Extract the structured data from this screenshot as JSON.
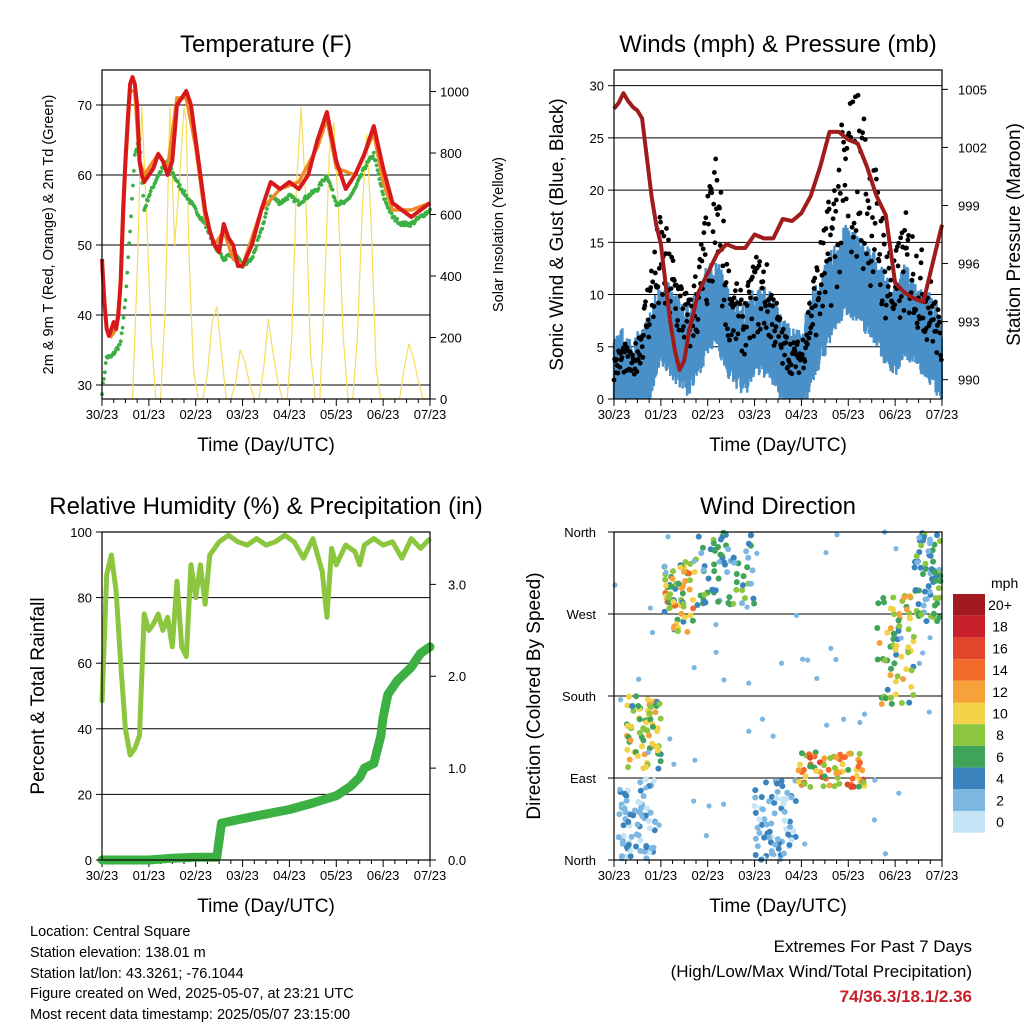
{
  "chart_data": [
    {
      "type": "line",
      "title": "Temperature (F)",
      "xlabel": "Time (Day/UTC)",
      "ylabel": "2m & 9m T (Red, Orange) & 2m Td (Green)",
      "ylabel_right": "Solar Insolation (Yellow)",
      "x_ticks": [
        "30/23",
        "01/23",
        "02/23",
        "03/23",
        "04/23",
        "05/23",
        "06/23",
        "07/23"
      ],
      "ylim": [
        28,
        75
      ],
      "yticks": [
        30,
        40,
        50,
        60,
        70
      ],
      "ylim_right": [
        0,
        1070
      ],
      "yticks_right": [
        0,
        200,
        400,
        600,
        800,
        1000
      ],
      "grid": true,
      "colors": {
        "t2m": "#d7191c",
        "t9m": "#f08a24",
        "td": "#3cb043",
        "solar": "#f6dd5a"
      },
      "series": [
        {
          "key": "t2m",
          "x": [
            0,
            0.05,
            0.1,
            0.15,
            0.2,
            0.25,
            0.3,
            0.35,
            0.4,
            0.45,
            0.5,
            0.55,
            0.6,
            0.65,
            0.7,
            0.75,
            0.8,
            0.85,
            0.9,
            1,
            1.1,
            1.2,
            1.3,
            1.4,
            1.5,
            1.6,
            1.7,
            1.8,
            1.9,
            2,
            2.1,
            2.2,
            2.3,
            2.4,
            2.5,
            2.6,
            2.7,
            2.8,
            2.9,
            3,
            3.2,
            3.4,
            3.6,
            3.8,
            4,
            4.2,
            4.4,
            4.6,
            4.8,
            5,
            5.2,
            5.4,
            5.6,
            5.8,
            6,
            6.2,
            6.4,
            6.6,
            6.8,
            7
          ],
          "y": [
            48,
            42,
            38,
            37,
            38,
            39,
            38,
            40,
            45,
            55,
            62,
            68,
            73,
            74,
            73,
            70,
            62,
            60,
            59,
            60,
            61,
            63,
            62,
            60,
            62,
            70,
            71,
            72,
            70,
            65,
            60,
            55,
            52,
            50,
            49,
            53,
            51,
            50,
            47,
            47,
            50,
            55,
            59,
            58,
            59,
            58,
            60,
            65,
            69,
            62,
            58,
            60,
            63,
            67,
            61,
            56,
            55,
            54,
            55,
            56
          ]
        },
        {
          "key": "t9m",
          "x": [
            0,
            0.1,
            0.2,
            0.3,
            0.4,
            0.5,
            0.6,
            0.7,
            0.8,
            0.9,
            1,
            1.2,
            1.4,
            1.6,
            1.8,
            2,
            2.2,
            2.4,
            2.6,
            2.8,
            3,
            3.4,
            3.8,
            4.2,
            4.6,
            4.8,
            5,
            5.4,
            5.8,
            6,
            6.2,
            6.6,
            7
          ],
          "y": [
            47,
            38,
            37,
            38,
            44,
            61,
            72,
            72,
            62,
            60,
            61,
            63,
            61,
            71,
            71,
            64,
            54,
            50,
            52,
            48,
            47,
            55,
            58,
            59,
            64,
            68,
            61,
            60,
            66,
            59,
            55,
            55,
            56
          ]
        },
        {
          "key": "td",
          "x": [
            0,
            0.1,
            0.2,
            0.3,
            0.4,
            0.5,
            0.6,
            0.7,
            0.8,
            0.9,
            1,
            1.2,
            1.4,
            1.6,
            1.8,
            2,
            2.2,
            2.4,
            2.6,
            2.8,
            3,
            3.2,
            3.4,
            3.6,
            3.8,
            4,
            4.2,
            4.4,
            4.6,
            4.8,
            5,
            5.2,
            5.4,
            5.6,
            5.8,
            6,
            6.2,
            6.4,
            6.6,
            6.8,
            7
          ],
          "y": [
            29,
            34,
            34,
            35,
            36,
            42,
            52,
            63,
            65,
            55,
            57,
            60,
            62,
            59,
            57,
            55,
            53,
            50,
            48,
            49,
            47,
            48,
            52,
            57,
            56,
            57,
            56,
            57,
            58,
            60,
            56,
            56,
            58,
            61,
            63,
            57,
            54,
            53,
            53,
            54,
            55
          ]
        },
        {
          "key": "solar",
          "x": [
            0.65,
            0.75,
            0.85,
            0.95,
            1.05,
            1.15,
            1.25,
            1.35,
            1.45,
            1.55,
            1.65,
            1.75,
            1.8,
            1.85,
            1.95,
            2.05,
            2.15,
            2.25,
            2.35,
            2.45,
            2.55,
            2.65,
            2.75,
            2.85,
            2.95,
            3.05,
            3.15,
            3.25,
            3.35,
            3.45,
            3.55,
            3.65,
            3.75,
            3.85,
            3.95,
            4.05,
            4.15,
            4.25,
            4.35,
            4.45,
            4.55,
            4.65,
            4.75,
            4.85,
            4.95,
            5.05,
            5.15,
            5.25,
            5.35,
            5.45,
            5.55,
            5.65,
            5.75,
            5.85,
            5.95,
            6.05,
            6.15,
            6.25,
            6.35,
            6.45,
            6.55,
            6.65,
            6.75,
            6.85,
            6.95
          ],
          "y": [
            0,
            400,
            950,
            600,
            200,
            0,
            0,
            300,
            950,
            500,
            700,
            950,
            900,
            500,
            100,
            0,
            0,
            80,
            250,
            300,
            150,
            0,
            0,
            50,
            160,
            120,
            50,
            0,
            0,
            100,
            260,
            150,
            60,
            0,
            0,
            200,
            700,
            950,
            650,
            150,
            0,
            0,
            350,
            800,
            900,
            600,
            200,
            0,
            0,
            200,
            600,
            860,
            550,
            100,
            0,
            0,
            0,
            0,
            0,
            100,
            180,
            130,
            60,
            0,
            0
          ]
        }
      ]
    },
    {
      "type": "scatter",
      "title": "Winds (mph) & Pressure (mb)",
      "xlabel": "Time (Day/UTC)",
      "ylabel": "Sonic Wind & Gust (Blue, Black)",
      "ylabel_right": "Station Pressure (Maroon)",
      "x_ticks": [
        "30/23",
        "01/23",
        "02/23",
        "03/23",
        "04/23",
        "05/23",
        "06/23",
        "07/23"
      ],
      "ylim": [
        0,
        31.5
      ],
      "yticks": [
        0,
        5,
        10,
        15,
        20,
        25,
        30
      ],
      "ylim_right": [
        989,
        1006
      ],
      "yticks_right": [
        990,
        993,
        996,
        999,
        1002,
        1005
      ],
      "grid": true,
      "colors": {
        "wind": "#4a90c8",
        "gust": "#000000",
        "pressure": "#a01c1c"
      },
      "series": [
        {
          "key": "wind_mean",
          "x": [
            0,
            0.2,
            0.4,
            0.6,
            0.8,
            1,
            1.2,
            1.4,
            1.6,
            1.8,
            2,
            2.2,
            2.4,
            2.6,
            2.8,
            3,
            3.2,
            3.4,
            3.6,
            3.8,
            4,
            4.2,
            4.4,
            4.6,
            4.8,
            5,
            5.2,
            5.4,
            5.6,
            5.8,
            6,
            6.2,
            6.4,
            6.6,
            6.8,
            7
          ],
          "y": [
            1,
            2,
            1,
            2,
            4,
            7,
            6,
            5,
            4,
            6,
            8,
            9,
            6,
            5,
            4,
            6,
            6,
            5,
            3,
            2,
            2,
            5,
            7,
            9,
            11,
            12,
            11,
            10,
            9,
            7,
            6,
            8,
            7,
            6,
            5,
            3
          ]
        },
        {
          "key": "gust_mean",
          "x": [
            0,
            0.2,
            0.4,
            0.6,
            0.8,
            1,
            1.2,
            1.4,
            1.6,
            1.8,
            2,
            2.2,
            2.4,
            2.6,
            2.8,
            3,
            3.2,
            3.4,
            3.6,
            3.8,
            4,
            4.2,
            4.4,
            4.6,
            4.8,
            5,
            5.2,
            5.4,
            5.6,
            5.8,
            6,
            6.2,
            6.4,
            6.6,
            6.8,
            7
          ],
          "y": [
            3,
            4,
            3,
            6,
            10,
            13,
            11,
            9,
            7,
            10,
            14,
            18,
            10,
            8,
            7,
            10,
            10,
            8,
            5,
            4,
            4,
            8,
            11,
            14,
            18,
            21,
            22,
            19,
            16,
            12,
            10,
            13,
            12,
            10,
            8,
            5
          ]
        },
        {
          "key": "pressure",
          "x": [
            0,
            0.1,
            0.2,
            0.3,
            0.4,
            0.5,
            0.6,
            0.7,
            0.8,
            0.9,
            1,
            1.1,
            1.2,
            1.3,
            1.4,
            1.5,
            1.6,
            1.8,
            2,
            2.2,
            2.4,
            2.6,
            2.8,
            3,
            3.2,
            3.4,
            3.6,
            3.8,
            4,
            4.2,
            4.4,
            4.6,
            4.8,
            5,
            5.2,
            5.4,
            5.6,
            5.8,
            6,
            6.2,
            6.4,
            6.6,
            6.8,
            7
          ],
          "y": [
            1004,
            1004.3,
            1004.8,
            1004.4,
            1004.1,
            1003.9,
            1003.5,
            1001.5,
            999.5,
            998,
            997,
            995,
            993,
            991.5,
            990.5,
            991,
            992.5,
            994.5,
            995.5,
            996.5,
            997,
            996.8,
            996.8,
            997.5,
            997.3,
            997.3,
            998.3,
            998.2,
            998.6,
            999.5,
            1001,
            1002.8,
            1002.8,
            1002.4,
            1002.2,
            1001,
            999.5,
            998.5,
            995,
            994.5,
            994.2,
            994,
            996,
            998
          ]
        }
      ]
    },
    {
      "type": "line",
      "title": "Relative Humidity (%) & Precipitation (in)",
      "xlabel": "Time (Day/UTC)",
      "ylabel": "Percent & Total Rainfall",
      "x_ticks": [
        "30/23",
        "01/23",
        "02/23",
        "03/23",
        "04/23",
        "05/23",
        "06/23",
        "07/23"
      ],
      "ylim": [
        0,
        100
      ],
      "yticks": [
        0,
        20,
        40,
        60,
        80,
        100
      ],
      "ylim_right": [
        0,
        3.57
      ],
      "yticks_right": [
        "0.0",
        "1.0",
        "2.0",
        "3.0"
      ],
      "grid": true,
      "colors": {
        "rh": "#8cc63f",
        "precip": "#3cb043"
      },
      "series": [
        {
          "key": "rh",
          "x": [
            0,
            0.1,
            0.2,
            0.3,
            0.4,
            0.5,
            0.6,
            0.7,
            0.8,
            0.9,
            1,
            1.1,
            1.2,
            1.3,
            1.4,
            1.5,
            1.6,
            1.7,
            1.8,
            1.9,
            2,
            2.1,
            2.2,
            2.3,
            2.4,
            2.5,
            2.7,
            2.9,
            3.1,
            3.3,
            3.5,
            3.7,
            3.9,
            4.1,
            4.3,
            4.5,
            4.7,
            4.8,
            4.9,
            5,
            5.2,
            5.4,
            5.5,
            5.6,
            5.8,
            6,
            6.2,
            6.4,
            6.6,
            6.8,
            7
          ],
          "y": [
            48,
            87,
            93,
            82,
            60,
            40,
            32,
            34,
            38,
            75,
            70,
            72,
            75,
            70,
            74,
            65,
            85,
            65,
            62,
            90,
            80,
            90,
            78,
            93,
            95,
            97,
            99,
            97,
            96,
            98,
            96,
            97,
            99,
            97,
            92,
            98,
            88,
            74,
            95,
            90,
            96,
            94,
            90,
            96,
            98,
            96,
            97,
            92,
            98,
            95,
            98
          ]
        },
        {
          "key": "precip",
          "x": [
            0,
            1,
            1.5,
            2,
            2.3,
            2.45,
            2.55,
            3,
            3.5,
            4,
            4.5,
            5,
            5.3,
            5.5,
            5.6,
            5.8,
            5.95,
            6.0,
            6.1,
            6.3,
            6.6,
            6.8,
            7
          ],
          "y": [
            0,
            0,
            0.02,
            0.03,
            0.03,
            0.03,
            0.4,
            0.45,
            0.5,
            0.55,
            0.62,
            0.7,
            0.8,
            0.9,
            1.0,
            1.05,
            1.35,
            1.55,
            1.8,
            1.95,
            2.1,
            2.25,
            2.32
          ]
        }
      ]
    },
    {
      "type": "scatter",
      "title": "Wind Direction",
      "xlabel": "Time (Day/UTC)",
      "ylabel": "Direction (Colored By Speed)",
      "x_ticks": [
        "30/23",
        "01/23",
        "02/23",
        "03/23",
        "04/23",
        "05/23",
        "06/23",
        "07/23"
      ],
      "y_categories": [
        "North",
        "East",
        "South",
        "West",
        "North"
      ],
      "ylim": [
        0,
        360
      ],
      "grid": true,
      "colorbar_title": "mph",
      "colorbar_labels": [
        "20+",
        "18",
        "16",
        "14",
        "12",
        "10",
        "8",
        "6",
        "4",
        "2",
        "0"
      ],
      "colorbar_colors": [
        "#a11a1f",
        "#c8202a",
        "#e3452c",
        "#f26a2b",
        "#f7a13a",
        "#f3d24a",
        "#8cc63f",
        "#3fa45a",
        "#3a83bd",
        "#7cb7e2",
        "#c5e4f5"
      ],
      "clusters": [
        {
          "x": [
            0.1,
            0.9
          ],
          "dir": [
            0,
            90
          ],
          "speed": [
            0,
            4
          ]
        },
        {
          "x": [
            0.25,
            1.0
          ],
          "dir": [
            100,
            180
          ],
          "speed": [
            4,
            12
          ]
        },
        {
          "x": [
            1.05,
            1.8
          ],
          "dir": [
            250,
            330
          ],
          "speed": [
            4,
            14
          ]
        },
        {
          "x": [
            1.8,
            3.0
          ],
          "dir": [
            280,
            360
          ],
          "speed": [
            2,
            8
          ]
        },
        {
          "x": [
            3.0,
            3.9
          ],
          "dir": [
            0,
            90
          ],
          "speed": [
            0,
            5
          ]
        },
        {
          "x": [
            3.9,
            5.4
          ],
          "dir": [
            80,
            120
          ],
          "speed": [
            6,
            16
          ]
        },
        {
          "x": [
            5.6,
            6.4
          ],
          "dir": [
            170,
            290
          ],
          "speed": [
            4,
            12
          ]
        },
        {
          "x": [
            6.4,
            7.0
          ],
          "dir": [
            260,
            360
          ],
          "speed": [
            2,
            8
          ]
        }
      ]
    }
  ],
  "footer": {
    "location": "Location: Central Square",
    "elevation": "Station elevation: 138.01 m",
    "latlon": "Station lat/lon: 43.3261; -76.1044",
    "created": "Figure created on Wed, 2025-05-07, at 23:21 UTC",
    "recent": "Most recent data timestamp: 2025/05/07 23:15:00"
  },
  "extremes": {
    "title": "Extremes For Past 7 Days",
    "subtitle": "(High/Low/Max Wind/Total Precipitation)",
    "values": "74/36.3/18.1/2.36"
  }
}
